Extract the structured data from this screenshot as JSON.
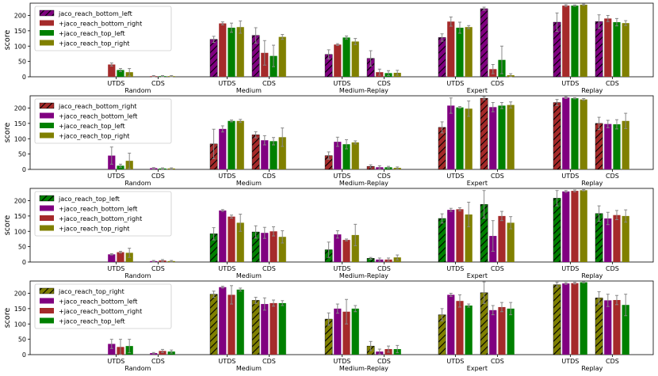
{
  "chart_data": [
    {
      "type": "bar",
      "ylabel": "score",
      "ylim": [
        0,
        240
      ],
      "yticks": [
        0,
        50,
        100,
        150,
        200
      ],
      "groups": [
        "Random",
        "Medium",
        "Medium-Replay",
        "Expert",
        "Replay"
      ],
      "subgroups": [
        "UTDS",
        "CDS"
      ],
      "series": [
        {
          "name": "jaco_reach_bottom_left",
          "color": "#800080",
          "hatched": true,
          "values": [
            [
              0,
              0
            ],
            [
              122,
              135
            ],
            [
              73,
              60
            ],
            [
              128,
              222
            ],
            [
              178,
              180
            ]
          ],
          "errors": [
            [
              0,
              0
            ],
            [
              10,
              25
            ],
            [
              15,
              25
            ],
            [
              12,
              5
            ],
            [
              30,
              22
            ]
          ]
        },
        {
          "name": "+jaco_reach_bottom_right",
          "color": "#a52a2a",
          "hatched": false,
          "values": [
            [
              40,
              2
            ],
            [
              174,
              78
            ],
            [
              105,
              15
            ],
            [
              180,
              25
            ],
            [
              232,
              190
            ]
          ],
          "errors": [
            [
              5,
              2
            ],
            [
              5,
              40
            ],
            [
              3,
              10
            ],
            [
              15,
              15
            ],
            [
              3,
              10
            ]
          ]
        },
        {
          "name": "+jaco_reach_top_left",
          "color": "#008000",
          "hatched": false,
          "values": [
            [
              22,
              2
            ],
            [
              160,
              68
            ],
            [
              128,
              12
            ],
            [
              160,
              55
            ],
            [
              232,
              178
            ]
          ],
          "errors": [
            [
              5,
              2
            ],
            [
              15,
              35
            ],
            [
              5,
              8
            ],
            [
              18,
              45
            ],
            [
              2,
              12
            ]
          ]
        },
        {
          "name": "+jaco_reach_top_right",
          "color": "#808000",
          "hatched": false,
          "values": [
            [
              15,
              2
            ],
            [
              162,
              130
            ],
            [
              115,
              13
            ],
            [
              162,
              5
            ],
            [
              235,
              175
            ]
          ],
          "errors": [
            [
              12,
              2
            ],
            [
              20,
              8
            ],
            [
              10,
              8
            ],
            [
              5,
              5
            ],
            [
              2,
              8
            ]
          ]
        }
      ]
    },
    {
      "type": "bar",
      "ylabel": "score",
      "ylim": [
        0,
        240
      ],
      "yticks": [
        0,
        50,
        100,
        150,
        200
      ],
      "groups": [
        "Random",
        "Medium",
        "Medium-Replay",
        "Expert",
        "Replay"
      ],
      "subgroups": [
        "UTDS",
        "CDS"
      ],
      "series": [
        {
          "name": "jaco_reach_bottom_right",
          "color": "#a52a2a",
          "hatched": true,
          "values": [
            [
              0,
              0
            ],
            [
              83,
              113
            ],
            [
              45,
              10
            ],
            [
              137,
              232
            ],
            [
              218,
              150
            ]
          ],
          "errors": [
            [
              0,
              0
            ],
            [
              48,
              10
            ],
            [
              12,
              5
            ],
            [
              18,
              5
            ],
            [
              10,
              20
            ]
          ]
        },
        {
          "name": "+jaco_reach_bottom_left",
          "color": "#800080",
          "hatched": false,
          "values": [
            [
              45,
              4
            ],
            [
              132,
              95
            ],
            [
              90,
              7
            ],
            [
              208,
              203
            ],
            [
              234,
              148
            ]
          ],
          "errors": [
            [
              28,
              2
            ],
            [
              10,
              15
            ],
            [
              15,
              5
            ],
            [
              25,
              15
            ],
            [
              3,
              12
            ]
          ]
        },
        {
          "name": "+jaco_reach_top_left",
          "color": "#008000",
          "hatched": false,
          "values": [
            [
              12,
              3
            ],
            [
              158,
              92
            ],
            [
              82,
              7
            ],
            [
              202,
              208
            ],
            [
              232,
              147
            ]
          ],
          "errors": [
            [
              5,
              2
            ],
            [
              3,
              12
            ],
            [
              15,
              3
            ],
            [
              3,
              10
            ],
            [
              2,
              15
            ]
          ]
        },
        {
          "name": "+jaco_reach_top_right",
          "color": "#808000",
          "hatched": false,
          "values": [
            [
              28,
              3
            ],
            [
              158,
              105
            ],
            [
              88,
              5
            ],
            [
              198,
              210
            ],
            [
              228,
              158
            ]
          ],
          "errors": [
            [
              25,
              2
            ],
            [
              5,
              30
            ],
            [
              5,
              3
            ],
            [
              25,
              10
            ],
            [
              3,
              25
            ]
          ]
        }
      ]
    },
    {
      "type": "bar",
      "ylabel": "score",
      "ylim": [
        0,
        240
      ],
      "yticks": [
        0,
        50,
        100,
        150,
        200
      ],
      "groups": [
        "Random",
        "Medium",
        "Medium-Replay",
        "Expert",
        "Replay"
      ],
      "subgroups": [
        "UTDS",
        "CDS"
      ],
      "series": [
        {
          "name": "jaco_reach_top_left",
          "color": "#008000",
          "hatched": true,
          "values": [
            [
              0,
              0
            ],
            [
              92,
              98
            ],
            [
              40,
              12
            ],
            [
              142,
              188
            ],
            [
              208,
              158
            ]
          ],
          "errors": [
            [
              0,
              0
            ],
            [
              20,
              20
            ],
            [
              25,
              3
            ],
            [
              15,
              45
            ],
            [
              25,
              25
            ]
          ]
        },
        {
          "name": "+jaco_reach_bottom_left",
          "color": "#800080",
          "hatched": false,
          "values": [
            [
              25,
              3
            ],
            [
              168,
              95
            ],
            [
              90,
              8
            ],
            [
              170,
              85
            ],
            [
              230,
              142
            ]
          ],
          "errors": [
            [
              2,
              2
            ],
            [
              3,
              18
            ],
            [
              12,
              5
            ],
            [
              5,
              50
            ],
            [
              3,
              20
            ]
          ]
        },
        {
          "name": "+jaco_reach_bottom_right",
          "color": "#a52a2a",
          "hatched": false,
          "values": [
            [
              32,
              5
            ],
            [
              148,
              100
            ],
            [
              72,
              8
            ],
            [
              172,
              150
            ],
            [
              232,
              153
            ]
          ],
          "errors": [
            [
              3,
              3
            ],
            [
              5,
              15
            ],
            [
              3,
              5
            ],
            [
              5,
              15
            ],
            [
              3,
              15
            ]
          ]
        },
        {
          "name": "+jaco_reach_top_right",
          "color": "#808000",
          "hatched": false,
          "values": [
            [
              30,
              3
            ],
            [
              128,
              82
            ],
            [
              88,
              15
            ],
            [
              155,
              128
            ],
            [
              234,
              150
            ]
          ],
          "errors": [
            [
              15,
              2
            ],
            [
              28,
              20
            ],
            [
              35,
              8
            ],
            [
              40,
              20
            ],
            [
              2,
              20
            ]
          ]
        }
      ]
    },
    {
      "type": "bar",
      "ylabel": "score",
      "ylim": [
        0,
        240
      ],
      "yticks": [
        0,
        50,
        100,
        150,
        200
      ],
      "groups": [
        "Random",
        "Medium",
        "Medium-Replay",
        "Expert",
        "Replay"
      ],
      "subgroups": [
        "UTDS",
        "CDS"
      ],
      "series": [
        {
          "name": "jaco_reach_top_right",
          "color": "#808000",
          "hatched": true,
          "values": [
            [
              0,
              0
            ],
            [
              197,
              177
            ],
            [
              116,
              28
            ],
            [
              130,
              202
            ],
            [
              228,
              185
            ]
          ],
          "errors": [
            [
              0,
              0
            ],
            [
              10,
              10
            ],
            [
              20,
              15
            ],
            [
              20,
              35
            ],
            [
              8,
              20
            ]
          ]
        },
        {
          "name": "+jaco_reach_bottom_left",
          "color": "#800080",
          "hatched": false,
          "values": [
            [
              35,
              5
            ],
            [
              220,
              165
            ],
            [
              150,
              10
            ],
            [
              195,
              145
            ],
            [
              232,
              177
            ]
          ],
          "errors": [
            [
              15,
              2
            ],
            [
              3,
              20
            ],
            [
              15,
              8
            ],
            [
              5,
              15
            ],
            [
              3,
              20
            ]
          ]
        },
        {
          "name": "+jaco_reach_bottom_right",
          "color": "#a52a2a",
          "hatched": false,
          "values": [
            [
              25,
              12
            ],
            [
              195,
              168
            ],
            [
              140,
              18
            ],
            [
              175,
              155
            ],
            [
              233,
              178
            ]
          ],
          "errors": [
            [
              25,
              5
            ],
            [
              30,
              10
            ],
            [
              40,
              10
            ],
            [
              20,
              15
            ],
            [
              3,
              15
            ]
          ]
        },
        {
          "name": "+jaco_reach_top_left",
          "color": "#008000",
          "hatched": false,
          "values": [
            [
              28,
              10
            ],
            [
              212,
              168
            ],
            [
              150,
              18
            ],
            [
              160,
              150
            ],
            [
              236,
              162
            ]
          ],
          "errors": [
            [
              22,
              5
            ],
            [
              5,
              8
            ],
            [
              10,
              12
            ],
            [
              5,
              20
            ],
            [
              2,
              35
            ]
          ]
        }
      ]
    }
  ]
}
